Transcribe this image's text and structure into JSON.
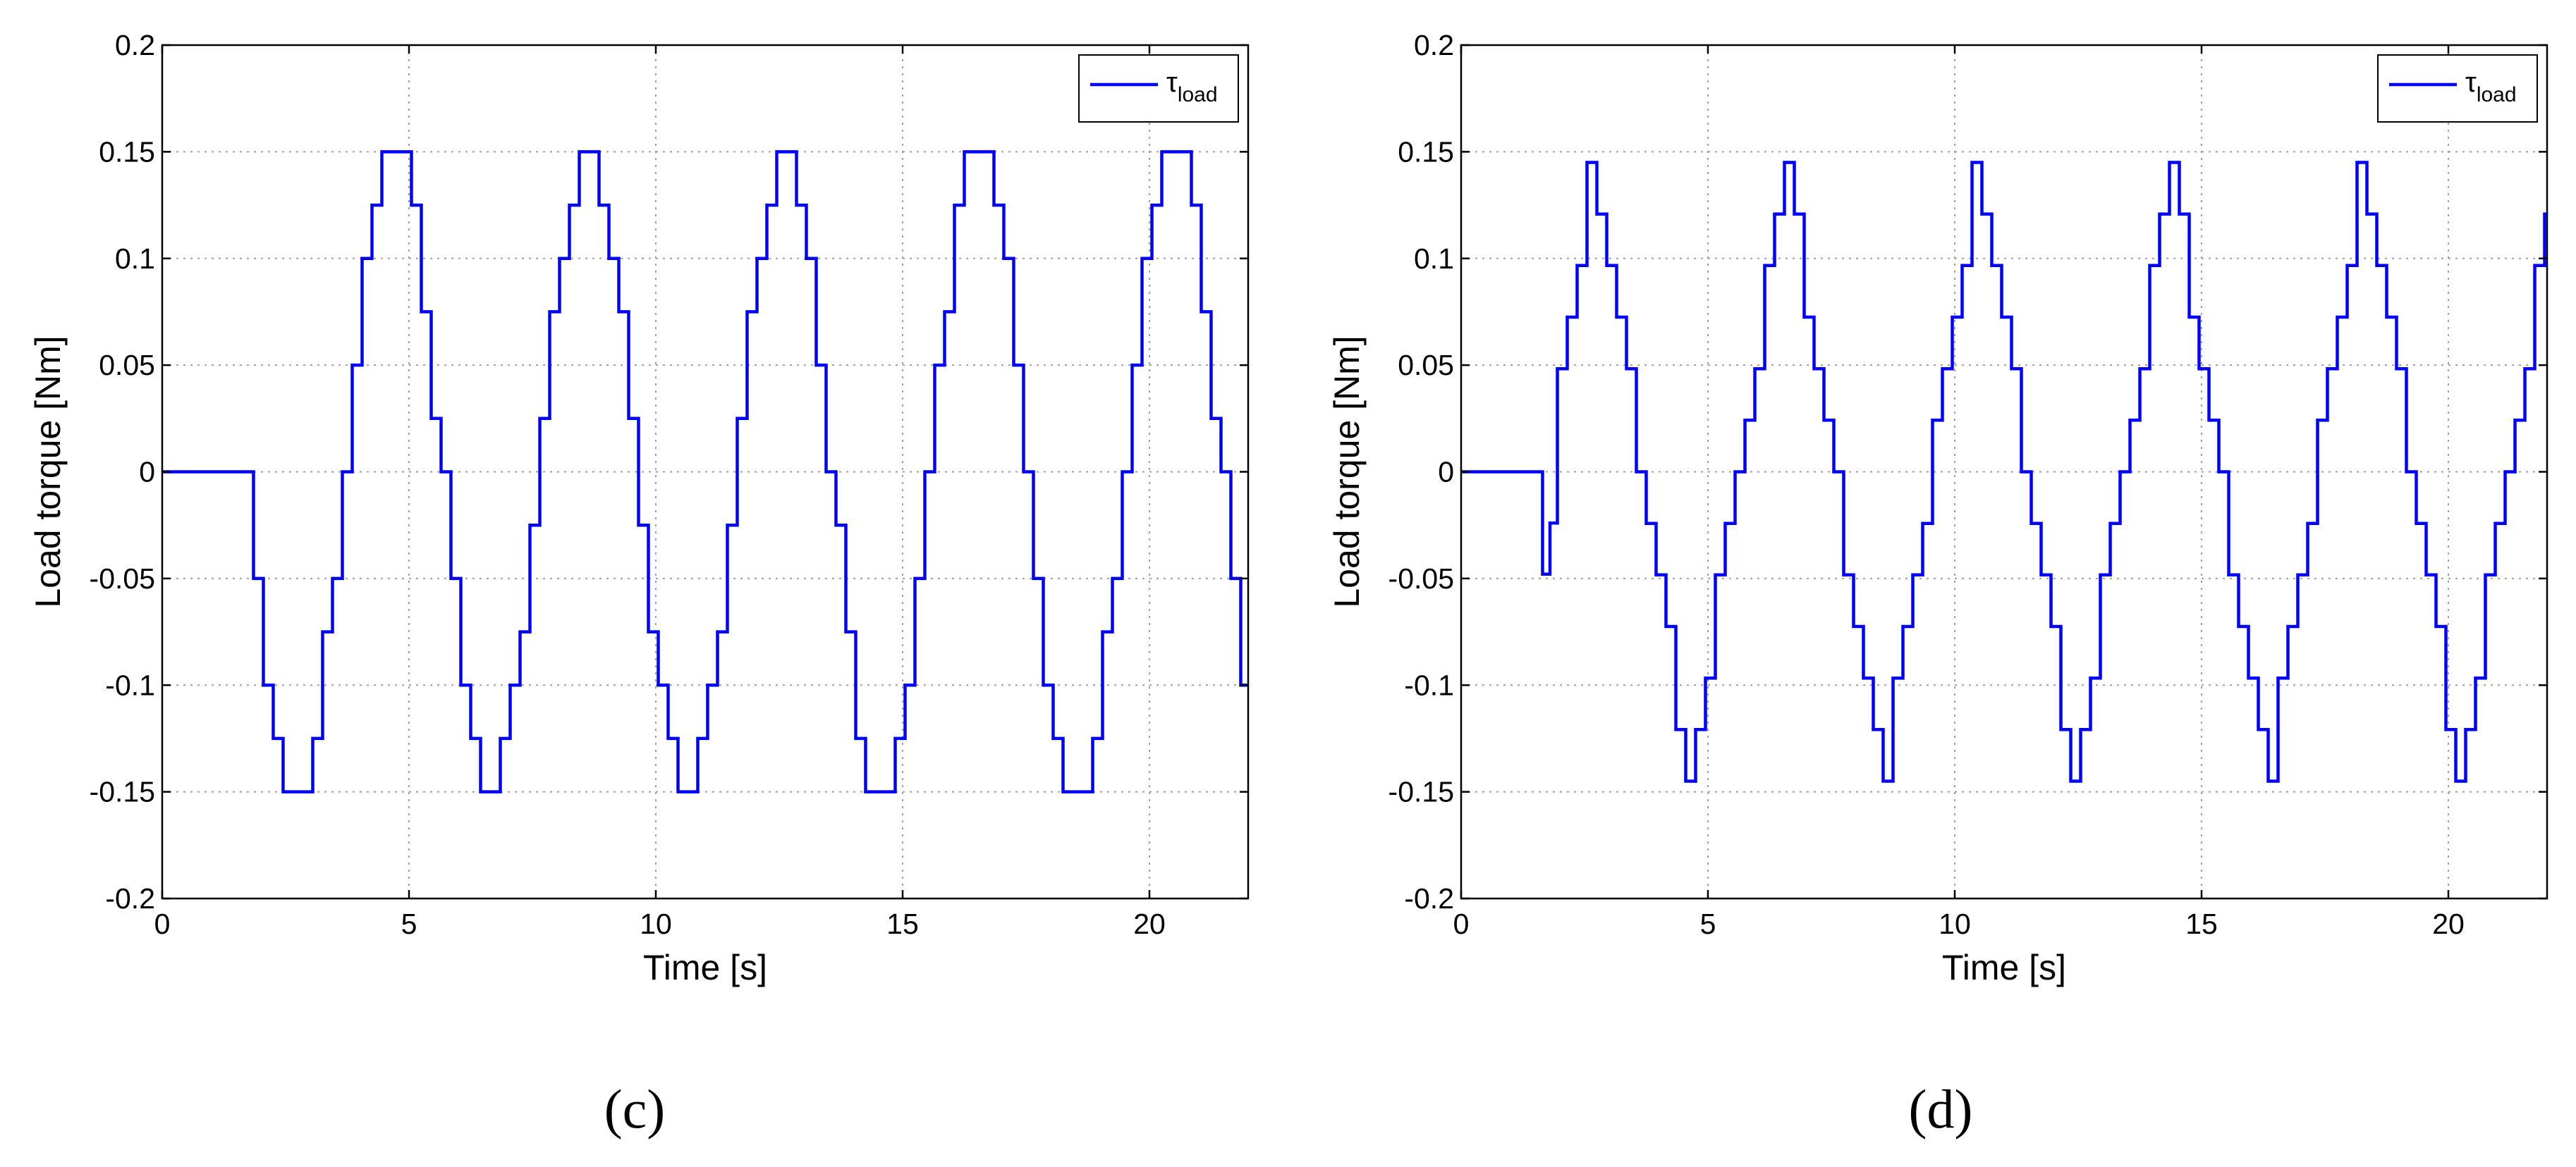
{
  "chart_data": [
    {
      "type": "line",
      "panel_label": "(c)",
      "xlabel": "Time [s]",
      "ylabel": "Load torque [Nm]",
      "xlim": [
        0,
        22
      ],
      "ylim": [
        -0.2,
        0.2
      ],
      "x_ticks": [
        "0",
        "5",
        "10",
        "15",
        "20"
      ],
      "y_ticks": [
        "-0.2",
        "-0.15",
        "-0.1",
        "-0.05",
        "0",
        "0.05",
        "0.1",
        "0.15",
        "0.2"
      ],
      "grid": true,
      "legend": {
        "position": "top-right",
        "symbol": "τ",
        "subscript": "load"
      },
      "series": [
        {
          "name": "τload",
          "color": "#0000ff",
          "description": "stepwise sinusoid, amplitude 0.15 Nm, period about 3.95 s, starts at t = 1.65 s going negative first",
          "zero_until": 1.65,
          "amplitude": 0.15,
          "period": 3.95,
          "phase": "negative-first",
          "step": 0.2
        }
      ]
    },
    {
      "type": "line",
      "panel_label": "(d)",
      "xlabel": "Time [s]",
      "ylabel": "Load torque [Nm]",
      "xlim": [
        0,
        22
      ],
      "ylim": [
        -0.2,
        0.2
      ],
      "x_ticks": [
        "0",
        "5",
        "10",
        "15",
        "20"
      ],
      "y_ticks": [
        "-0.2",
        "-0.15",
        "-0.1",
        "-0.05",
        "0",
        "0.05",
        "0.1",
        "0.15",
        "0.2"
      ],
      "grid": true,
      "legend": {
        "position": "top-right",
        "symbol": "τ",
        "subscript": "load"
      },
      "series": [
        {
          "name": "τload",
          "color": "#0000ff",
          "description": "stepwise triangular wave, amplitude 0.145 Nm, period about 3.9 s, starts at t = 1.65 s with a dip to -0.048 then rises",
          "zero_until": 1.65,
          "amplitude": 0.145,
          "period": 3.9,
          "phase": "positive-first",
          "step": 0.2
        }
      ]
    }
  ]
}
